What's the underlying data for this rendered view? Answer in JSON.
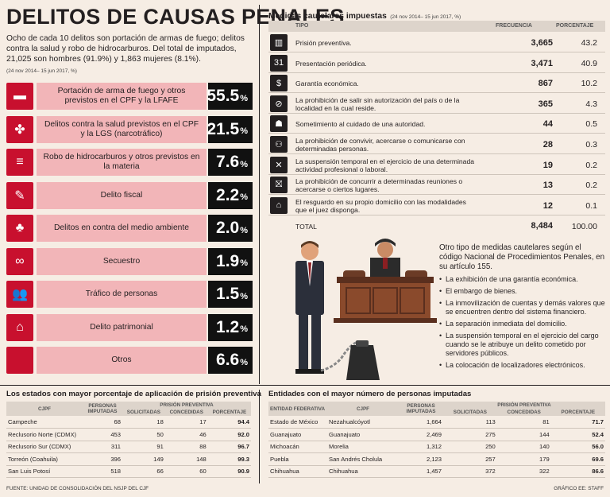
{
  "title": "DELITOS DE CAUSAS PENALES",
  "intro": "Ocho de cada 10 delitos son portación de armas de fuego; delitos contra la salud y robo de hidrocarburos. Del total de imputados, 21,025 son hombres (91.9%) y 1,863 mujeres (8.1%).",
  "period_note": "(24 nov 2014– 15 jun 2017, %)",
  "pct_symbol": "%",
  "crimes": [
    {
      "label": "Portación de arma de fuego y otros previstos en el CPF y la LFAFE",
      "pct": "55.5",
      "icon": "gun-icon",
      "glyph": "▬"
    },
    {
      "label": "Delitos contra la salud previstos en el CPF y la LGS (narcotráfico)",
      "pct": "21.5",
      "icon": "leaf-icon",
      "glyph": "✤"
    },
    {
      "label": "Robo de hidrocarburos y otros previstos en la materia",
      "pct": "7.6",
      "icon": "barrels-icon",
      "glyph": "≡"
    },
    {
      "label": "Delito fiscal",
      "pct": "2.2",
      "icon": "document-icon",
      "glyph": "✎"
    },
    {
      "label": "Delitos en contra del medio ambiente",
      "pct": "2.0",
      "icon": "hand-plant-icon",
      "glyph": "♣"
    },
    {
      "label": "Secuestro",
      "pct": "1.9",
      "icon": "handcuffs-icon",
      "glyph": "∞"
    },
    {
      "label": "Tráfico de personas",
      "pct": "1.5",
      "icon": "people-icon",
      "glyph": "👥"
    },
    {
      "label": "Delito patrimonial",
      "pct": "1.2",
      "icon": "house-icon",
      "glyph": "⌂"
    },
    {
      "label": "Otros",
      "pct": "6.6",
      "icon": "blank-icon",
      "glyph": ""
    }
  ],
  "medidas": {
    "title": "Medidas cautelares impuestas",
    "period": "(24 nov 2014– 15 jun 2017, %)",
    "col_tipo": "TIPO",
    "col_frecuencia": "FRECUENCIA",
    "col_porcentaje": "PORCENTAJE",
    "rows": [
      {
        "tipo": "Prisión preventiva.",
        "frecuencia": "3,665",
        "porcentaje": "43.2",
        "icon": "prison-bars-icon",
        "glyph": "▥"
      },
      {
        "tipo": "Presentación periódica.",
        "frecuencia": "3,471",
        "porcentaje": "40.9",
        "icon": "calendar-icon",
        "glyph": "31"
      },
      {
        "tipo": "Garantía económica.",
        "frecuencia": "867",
        "porcentaje": "10.2",
        "icon": "money-icon",
        "glyph": "$"
      },
      {
        "tipo": "La prohibición de salir sin autorización del país o de la localidad en la cual reside.",
        "frecuencia": "365",
        "porcentaje": "4.3",
        "icon": "no-walking-icon",
        "glyph": "⊘"
      },
      {
        "tipo": "Sometimiento al cuidado de una autoridad.",
        "frecuencia": "44",
        "porcentaje": "0.5",
        "icon": "police-icon",
        "glyph": "☗"
      },
      {
        "tipo": "La prohibición de convivir, acercarse o comunicarse con determinadas personas.",
        "frecuencia": "28",
        "porcentaje": "0.3",
        "icon": "group-icon",
        "glyph": "⚇"
      },
      {
        "tipo": "La suspensión temporal en el ejercicio de una determinada actividad profesional o laboral.",
        "frecuencia": "19",
        "porcentaje": "0.2",
        "icon": "cross-icon",
        "glyph": "✕"
      },
      {
        "tipo": "La prohibición de concurrir a determinadas reuniones o acercarse o ciertos lugares.",
        "frecuencia": "13",
        "porcentaje": "0.2",
        "icon": "no-entry-icon",
        "glyph": "⛝"
      },
      {
        "tipo": "El resguardo en su propio domicilio con las modalidades que el juez disponga.",
        "frecuencia": "12",
        "porcentaje": "0.1",
        "icon": "home-icon",
        "glyph": "⌂"
      }
    ],
    "total_label": "TOTAL",
    "total_frecuencia": "8,484",
    "total_porcentaje": "100.00"
  },
  "otros": {
    "intro": "Otro tipo de medidas cautelares según el código Nacional de Procedimientos Penales, en su artículo 155.",
    "items": [
      "La exhibición de una garantía económica.",
      "El embargo de bienes.",
      "La inmovilización de cuentas y demás valores que se encuentren dentro del sistema financiero.",
      "La separación inmediata del domicilio.",
      "La suspensión temporal en el ejercicio del cargo cuando se le atribuye un delito cometido por servidores públicos.",
      "La colocación de localizadores electrónicos."
    ]
  },
  "estados": {
    "title": "Los estados con mayor porcentaje de aplicación de prisión preventiva",
    "col_cjpf": "CJPF",
    "col_personas": "PERSONAS IMPUTADAS",
    "col_prision": "PRISIÓN PREVENTIVA",
    "col_solicitadas": "SOLICITADAS",
    "col_concedidas": "CONCEDIDAS",
    "col_porcentaje": "PORCENTAJE",
    "rows": [
      {
        "cjpf": "Campeche",
        "personas": "68",
        "solicitadas": "18",
        "concedidas": "17",
        "porcentaje": "94.4"
      },
      {
        "cjpf": "Reclusorio Norte (CDMX)",
        "personas": "453",
        "solicitadas": "50",
        "concedidas": "46",
        "porcentaje": "92.0"
      },
      {
        "cjpf": "Reclusorio Sur (CDMX)",
        "personas": "311",
        "solicitadas": "91",
        "concedidas": "88",
        "porcentaje": "96.7"
      },
      {
        "cjpf": "Torreón (Coahuila)",
        "personas": "396",
        "solicitadas": "149",
        "concedidas": "148",
        "porcentaje": "99.3"
      },
      {
        "cjpf": "San Luis Potosí",
        "personas": "518",
        "solicitadas": "66",
        "concedidas": "60",
        "porcentaje": "90.9"
      }
    ]
  },
  "entidades": {
    "title": "Entidades con el mayor número de personas imputadas",
    "col_entidad": "ENTIDAD FEDERATIVA",
    "col_cjpf": "CJPF",
    "col_personas": "PERSONAS IMPUTADAS",
    "col_prision": "PRISIÓN PREVENTIVA",
    "col_solicitadas": "SOLICITADAS",
    "col_concedidas": "CONCEDIDAS",
    "col_porcentaje": "PORCENTAJE",
    "rows": [
      {
        "entidad": "Estado de México",
        "cjpf": "Nezahualcóyotl",
        "personas": "1,664",
        "solicitadas": "113",
        "concedidas": "81",
        "porcentaje": "71.7"
      },
      {
        "entidad": "Guanajuato",
        "cjpf": "Guanajuato",
        "personas": "2,469",
        "solicitadas": "275",
        "concedidas": "144",
        "porcentaje": "52.4"
      },
      {
        "entidad": "Michoacán",
        "cjpf": "Morelia",
        "personas": "1,312",
        "solicitadas": "250",
        "concedidas": "140",
        "porcentaje": "56.0"
      },
      {
        "entidad": "Puebla",
        "cjpf": "San Andrés Cholula",
        "personas": "2,123",
        "solicitadas": "257",
        "concedidas": "179",
        "porcentaje": "69.6"
      },
      {
        "entidad": "Chihuahua",
        "cjpf": "Chihuahua",
        "personas": "1,457",
        "solicitadas": "372",
        "concedidas": "322",
        "porcentaje": "86.6"
      }
    ]
  },
  "footer": {
    "source": "FUENTE: UNIDAD DE CONSOLIDACIÓN DEL NSJP DEL CJF",
    "credit": "GRÁFICO EE: STAFF"
  },
  "chart_data": {
    "type": "bar",
    "title": "DELITOS DE CAUSAS PENALES",
    "categories": [
      "Portación de arma de fuego y otros previstos en el CPF y la LFAFE",
      "Delitos contra la salud previstos en el CPF y la LGS (narcotráfico)",
      "Robo de hidrocarburos y otros previstos en la materia",
      "Delito fiscal",
      "Delitos en contra del medio ambiente",
      "Secuestro",
      "Tráfico de personas",
      "Delito patrimonial",
      "Otros"
    ],
    "values": [
      55.5,
      21.5,
      7.6,
      2.2,
      2.0,
      1.9,
      1.5,
      1.2,
      6.6
    ],
    "ylabel": "%"
  },
  "colors": {
    "accent": "#c8102e",
    "pink": "#f2b5b8",
    "dark": "#111111",
    "bg": "#f6ede4"
  }
}
